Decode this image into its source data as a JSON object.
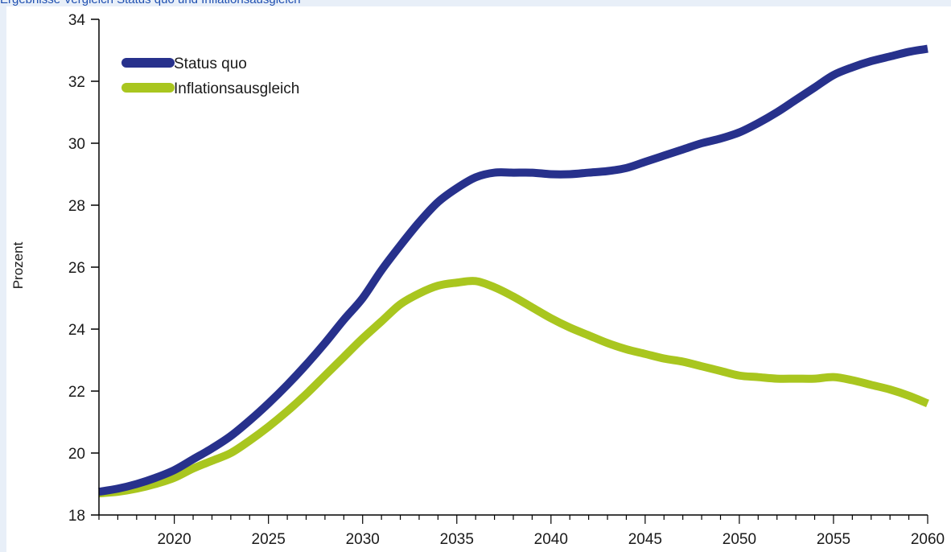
{
  "caption": "Ergebnisse Vergleich Status quo und Inflationsausgleich",
  "chart_data": {
    "type": "line",
    "title": "",
    "xlabel": "",
    "ylabel": "Prozent",
    "xlim": [
      2016,
      2060
    ],
    "ylim": [
      18,
      34
    ],
    "xticks": [
      2020,
      2025,
      2030,
      2035,
      2040,
      2045,
      2050,
      2055,
      2060
    ],
    "yticks": [
      18,
      20,
      22,
      24,
      26,
      28,
      30,
      32,
      34
    ],
    "grid": false,
    "legend_position": "top-left",
    "x": [
      2016,
      2017,
      2018,
      2019,
      2020,
      2021,
      2022,
      2023,
      2024,
      2025,
      2026,
      2027,
      2028,
      2029,
      2030,
      2031,
      2032,
      2033,
      2034,
      2035,
      2036,
      2037,
      2038,
      2039,
      2040,
      2041,
      2042,
      2043,
      2044,
      2045,
      2046,
      2047,
      2048,
      2049,
      2050,
      2051,
      2052,
      2053,
      2054,
      2055,
      2056,
      2057,
      2058,
      2059,
      2060
    ],
    "series": [
      {
        "name": "Status quo",
        "color": "#27318c",
        "values": [
          18.75,
          18.85,
          19.0,
          19.2,
          19.45,
          19.8,
          20.15,
          20.55,
          21.05,
          21.6,
          22.2,
          22.85,
          23.55,
          24.3,
          25.0,
          25.9,
          26.7,
          27.45,
          28.1,
          28.55,
          28.9,
          29.05,
          29.05,
          29.05,
          29.0,
          29.0,
          29.05,
          29.1,
          29.2,
          29.4,
          29.6,
          29.8,
          30.0,
          30.15,
          30.35,
          30.65,
          31.0,
          31.4,
          31.8,
          32.2,
          32.45,
          32.65,
          32.8,
          32.95,
          33.05
        ]
      },
      {
        "name": "Inflationsausgleich",
        "color": "#a9c61f",
        "values": [
          18.7,
          18.75,
          18.85,
          19.0,
          19.2,
          19.5,
          19.75,
          20.0,
          20.4,
          20.85,
          21.35,
          21.9,
          22.5,
          23.1,
          23.7,
          24.25,
          24.8,
          25.15,
          25.4,
          25.5,
          25.55,
          25.35,
          25.05,
          24.7,
          24.35,
          24.05,
          23.8,
          23.55,
          23.35,
          23.2,
          23.05,
          22.95,
          22.8,
          22.65,
          22.5,
          22.45,
          22.4,
          22.4,
          22.4,
          22.45,
          22.35,
          22.2,
          22.05,
          21.85,
          21.6
        ]
      }
    ]
  }
}
